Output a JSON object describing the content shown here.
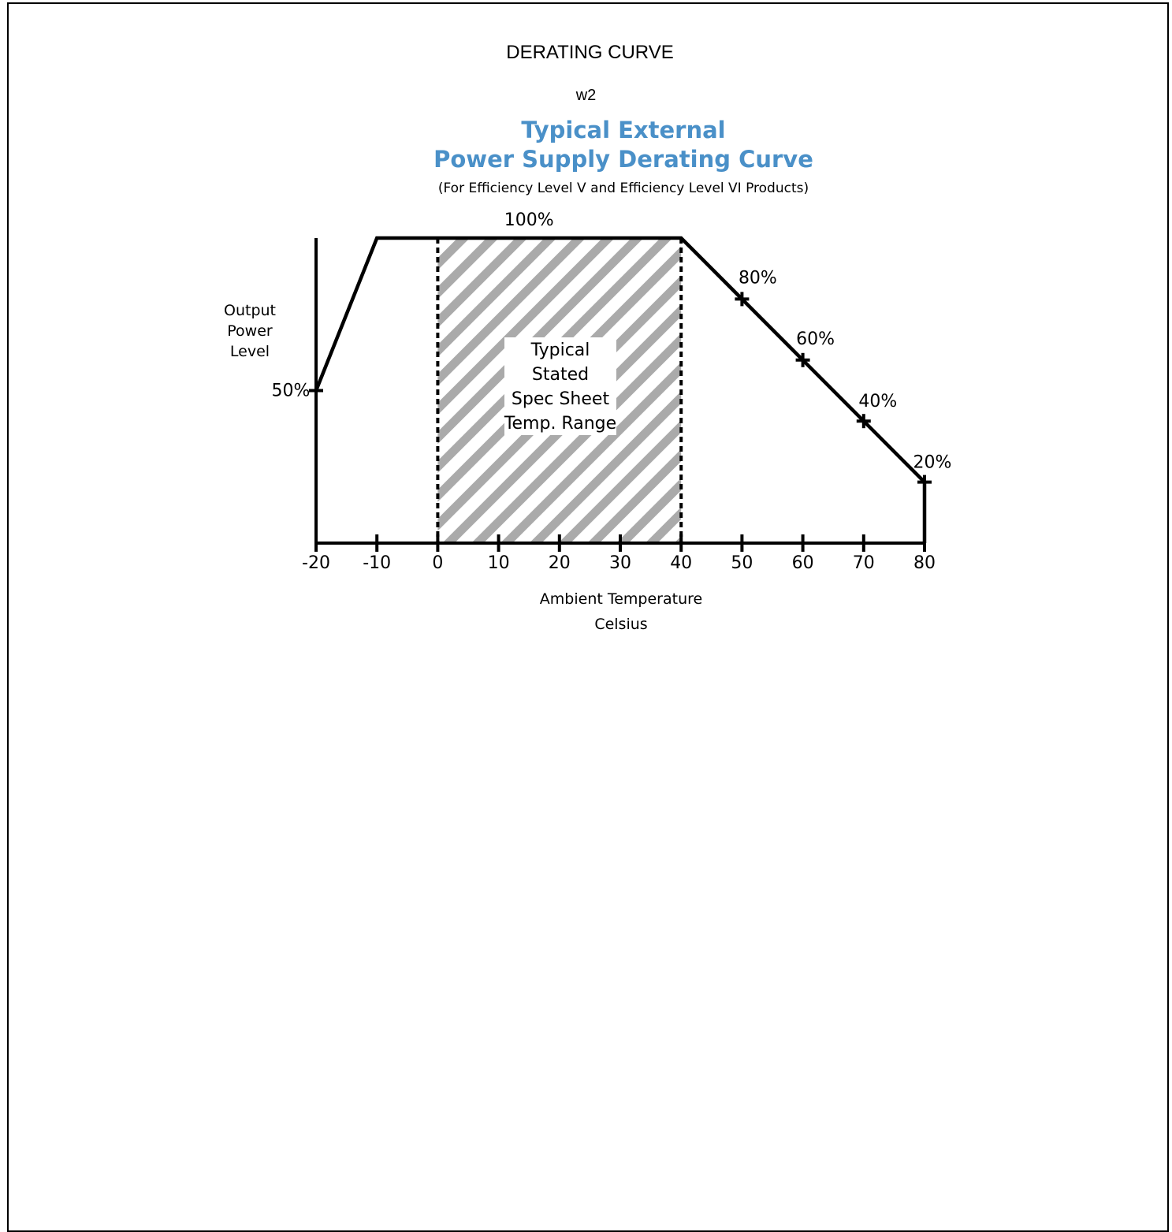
{
  "header": {
    "title": "DERATING CURVE",
    "subtitle": "w2"
  },
  "chart_data": {
    "type": "line",
    "title": [
      "Typical External",
      "Power Supply Derating Curve"
    ],
    "subtitle": "(For Efficiency Level V and Efficiency Level VI Products)",
    "ylabel": [
      "Output",
      "Power",
      "Level"
    ],
    "xlabel": [
      "Ambient Temperature",
      "Celsius"
    ],
    "xlim": [
      -20,
      80
    ],
    "ylim": [
      0,
      100
    ],
    "x_ticks": [
      -20,
      -10,
      0,
      10,
      20,
      30,
      40,
      50,
      60,
      70,
      80
    ],
    "series": [
      {
        "x": [
          -20,
          -10,
          40,
          50,
          60,
          70,
          80,
          80
        ],
        "y": [
          50,
          100,
          100,
          80,
          60,
          40,
          20,
          0
        ]
      }
    ],
    "point_labels": [
      {
        "x": -20,
        "y": 50,
        "label": "50%",
        "marker": true
      },
      {
        "x": 15,
        "y": 100,
        "label": "100%",
        "marker": false
      },
      {
        "x": 50,
        "y": 80,
        "label": "80%",
        "marker": true
      },
      {
        "x": 60,
        "y": 60,
        "label": "60%",
        "marker": true
      },
      {
        "x": 70,
        "y": 40,
        "label": "40%",
        "marker": true
      },
      {
        "x": 80,
        "y": 20,
        "label": "20%",
        "marker": true
      }
    ],
    "shaded_region": {
      "x_range": [
        0,
        40
      ],
      "label": [
        "Typical",
        "Stated",
        "Spec Sheet",
        "Temp. Range"
      ]
    },
    "colors": {
      "title": "#4a90c8",
      "hatch": "#aaaaaa",
      "line": "#000000"
    },
    "grid": false
  }
}
